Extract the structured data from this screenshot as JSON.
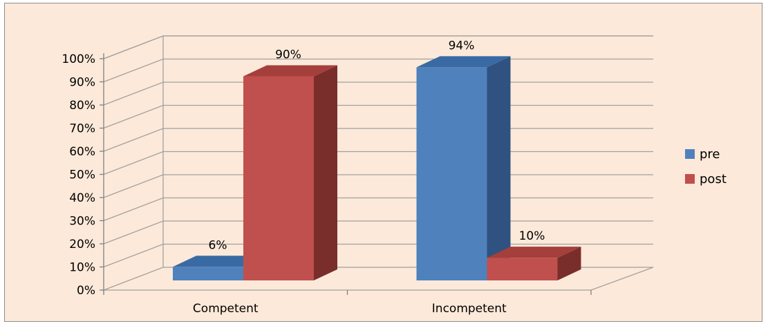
{
  "chart_data": {
    "type": "bar",
    "categories": [
      "Competent",
      "Incompetent"
    ],
    "series": [
      {
        "name": "pre",
        "values": [
          6,
          94
        ],
        "labels": [
          "6%",
          "94%"
        ],
        "color": "#4f81bd",
        "top_color": "#3a6aa3",
        "side_color": "#2f5280"
      },
      {
        "name": "post",
        "values": [
          90,
          10
        ],
        "labels": [
          "90%",
          "10%"
        ],
        "color": "#c0504d",
        "top_color": "#a53f3c",
        "side_color": "#7a2e2c"
      }
    ],
    "y_ticks": [
      "0%",
      "10%",
      "20%",
      "30%",
      "40%",
      "50%",
      "60%",
      "70%",
      "80%",
      "90%",
      "100%"
    ],
    "ylim": [
      0,
      100
    ],
    "grid": true,
    "legend_position": "right",
    "chart_style": "3d-clustered-column",
    "background_color": "#fde9d9",
    "gridline_color": "#a0a0a0"
  }
}
